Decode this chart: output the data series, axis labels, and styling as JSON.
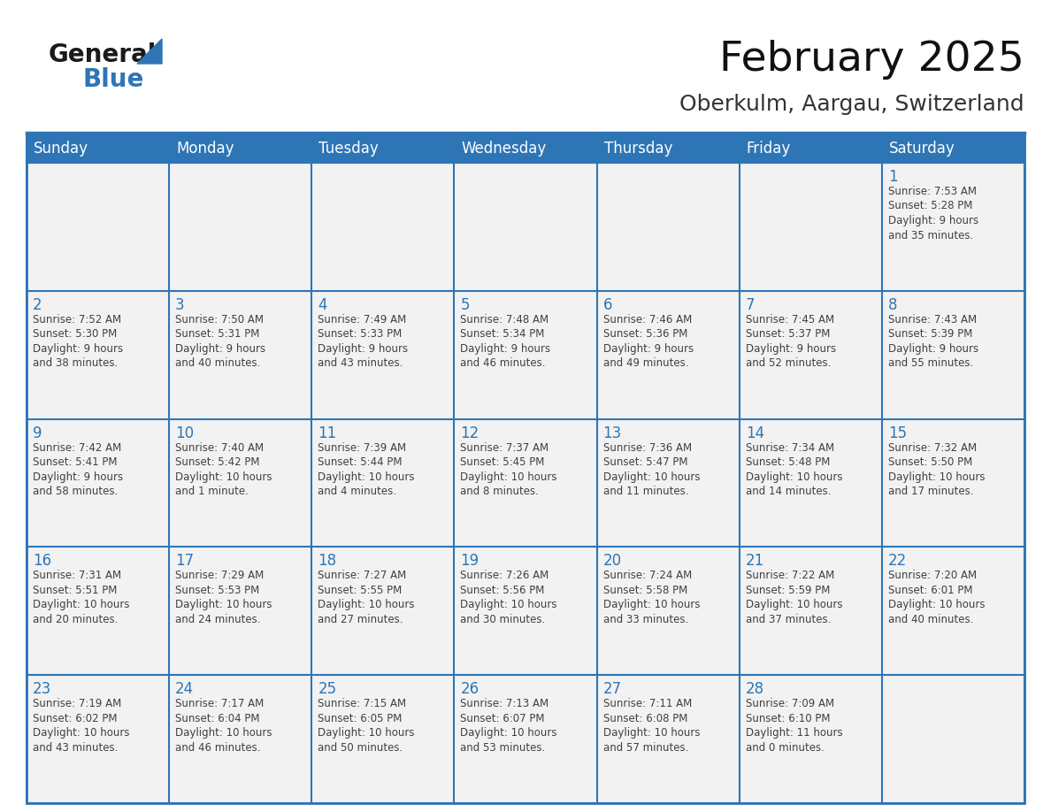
{
  "title": "February 2025",
  "subtitle": "Oberkulm, Aargau, Switzerland",
  "header_bg": "#2E75B6",
  "header_text_color": "#FFFFFF",
  "cell_bg": "#FFFFFF",
  "cell_bg_alt": "#F2F2F2",
  "day_number_color": "#2E75B6",
  "cell_text_color": "#404040",
  "days_of_week": [
    "Sunday",
    "Monday",
    "Tuesday",
    "Wednesday",
    "Thursday",
    "Friday",
    "Saturday"
  ],
  "weeks": [
    [
      {
        "day": "",
        "info": ""
      },
      {
        "day": "",
        "info": ""
      },
      {
        "day": "",
        "info": ""
      },
      {
        "day": "",
        "info": ""
      },
      {
        "day": "",
        "info": ""
      },
      {
        "day": "",
        "info": ""
      },
      {
        "day": "1",
        "info": "Sunrise: 7:53 AM\nSunset: 5:28 PM\nDaylight: 9 hours\nand 35 minutes."
      }
    ],
    [
      {
        "day": "2",
        "info": "Sunrise: 7:52 AM\nSunset: 5:30 PM\nDaylight: 9 hours\nand 38 minutes."
      },
      {
        "day": "3",
        "info": "Sunrise: 7:50 AM\nSunset: 5:31 PM\nDaylight: 9 hours\nand 40 minutes."
      },
      {
        "day": "4",
        "info": "Sunrise: 7:49 AM\nSunset: 5:33 PM\nDaylight: 9 hours\nand 43 minutes."
      },
      {
        "day": "5",
        "info": "Sunrise: 7:48 AM\nSunset: 5:34 PM\nDaylight: 9 hours\nand 46 minutes."
      },
      {
        "day": "6",
        "info": "Sunrise: 7:46 AM\nSunset: 5:36 PM\nDaylight: 9 hours\nand 49 minutes."
      },
      {
        "day": "7",
        "info": "Sunrise: 7:45 AM\nSunset: 5:37 PM\nDaylight: 9 hours\nand 52 minutes."
      },
      {
        "day": "8",
        "info": "Sunrise: 7:43 AM\nSunset: 5:39 PM\nDaylight: 9 hours\nand 55 minutes."
      }
    ],
    [
      {
        "day": "9",
        "info": "Sunrise: 7:42 AM\nSunset: 5:41 PM\nDaylight: 9 hours\nand 58 minutes."
      },
      {
        "day": "10",
        "info": "Sunrise: 7:40 AM\nSunset: 5:42 PM\nDaylight: 10 hours\nand 1 minute."
      },
      {
        "day": "11",
        "info": "Sunrise: 7:39 AM\nSunset: 5:44 PM\nDaylight: 10 hours\nand 4 minutes."
      },
      {
        "day": "12",
        "info": "Sunrise: 7:37 AM\nSunset: 5:45 PM\nDaylight: 10 hours\nand 8 minutes."
      },
      {
        "day": "13",
        "info": "Sunrise: 7:36 AM\nSunset: 5:47 PM\nDaylight: 10 hours\nand 11 minutes."
      },
      {
        "day": "14",
        "info": "Sunrise: 7:34 AM\nSunset: 5:48 PM\nDaylight: 10 hours\nand 14 minutes."
      },
      {
        "day": "15",
        "info": "Sunrise: 7:32 AM\nSunset: 5:50 PM\nDaylight: 10 hours\nand 17 minutes."
      }
    ],
    [
      {
        "day": "16",
        "info": "Sunrise: 7:31 AM\nSunset: 5:51 PM\nDaylight: 10 hours\nand 20 minutes."
      },
      {
        "day": "17",
        "info": "Sunrise: 7:29 AM\nSunset: 5:53 PM\nDaylight: 10 hours\nand 24 minutes."
      },
      {
        "day": "18",
        "info": "Sunrise: 7:27 AM\nSunset: 5:55 PM\nDaylight: 10 hours\nand 27 minutes."
      },
      {
        "day": "19",
        "info": "Sunrise: 7:26 AM\nSunset: 5:56 PM\nDaylight: 10 hours\nand 30 minutes."
      },
      {
        "day": "20",
        "info": "Sunrise: 7:24 AM\nSunset: 5:58 PM\nDaylight: 10 hours\nand 33 minutes."
      },
      {
        "day": "21",
        "info": "Sunrise: 7:22 AM\nSunset: 5:59 PM\nDaylight: 10 hours\nand 37 minutes."
      },
      {
        "day": "22",
        "info": "Sunrise: 7:20 AM\nSunset: 6:01 PM\nDaylight: 10 hours\nand 40 minutes."
      }
    ],
    [
      {
        "day": "23",
        "info": "Sunrise: 7:19 AM\nSunset: 6:02 PM\nDaylight: 10 hours\nand 43 minutes."
      },
      {
        "day": "24",
        "info": "Sunrise: 7:17 AM\nSunset: 6:04 PM\nDaylight: 10 hours\nand 46 minutes."
      },
      {
        "day": "25",
        "info": "Sunrise: 7:15 AM\nSunset: 6:05 PM\nDaylight: 10 hours\nand 50 minutes."
      },
      {
        "day": "26",
        "info": "Sunrise: 7:13 AM\nSunset: 6:07 PM\nDaylight: 10 hours\nand 53 minutes."
      },
      {
        "day": "27",
        "info": "Sunrise: 7:11 AM\nSunset: 6:08 PM\nDaylight: 10 hours\nand 57 minutes."
      },
      {
        "day": "28",
        "info": "Sunrise: 7:09 AM\nSunset: 6:10 PM\nDaylight: 11 hours\nand 0 minutes."
      },
      {
        "day": "",
        "info": ""
      }
    ]
  ],
  "logo_general_color": "#1a1a1a",
  "logo_blue_color": "#2E75B6",
  "title_fontsize": 34,
  "subtitle_fontsize": 18,
  "header_fontsize": 12,
  "day_number_fontsize": 12,
  "cell_text_fontsize": 8.5,
  "grid_color": "#2E75B6",
  "inner_grid_color": "#AAAAAA"
}
